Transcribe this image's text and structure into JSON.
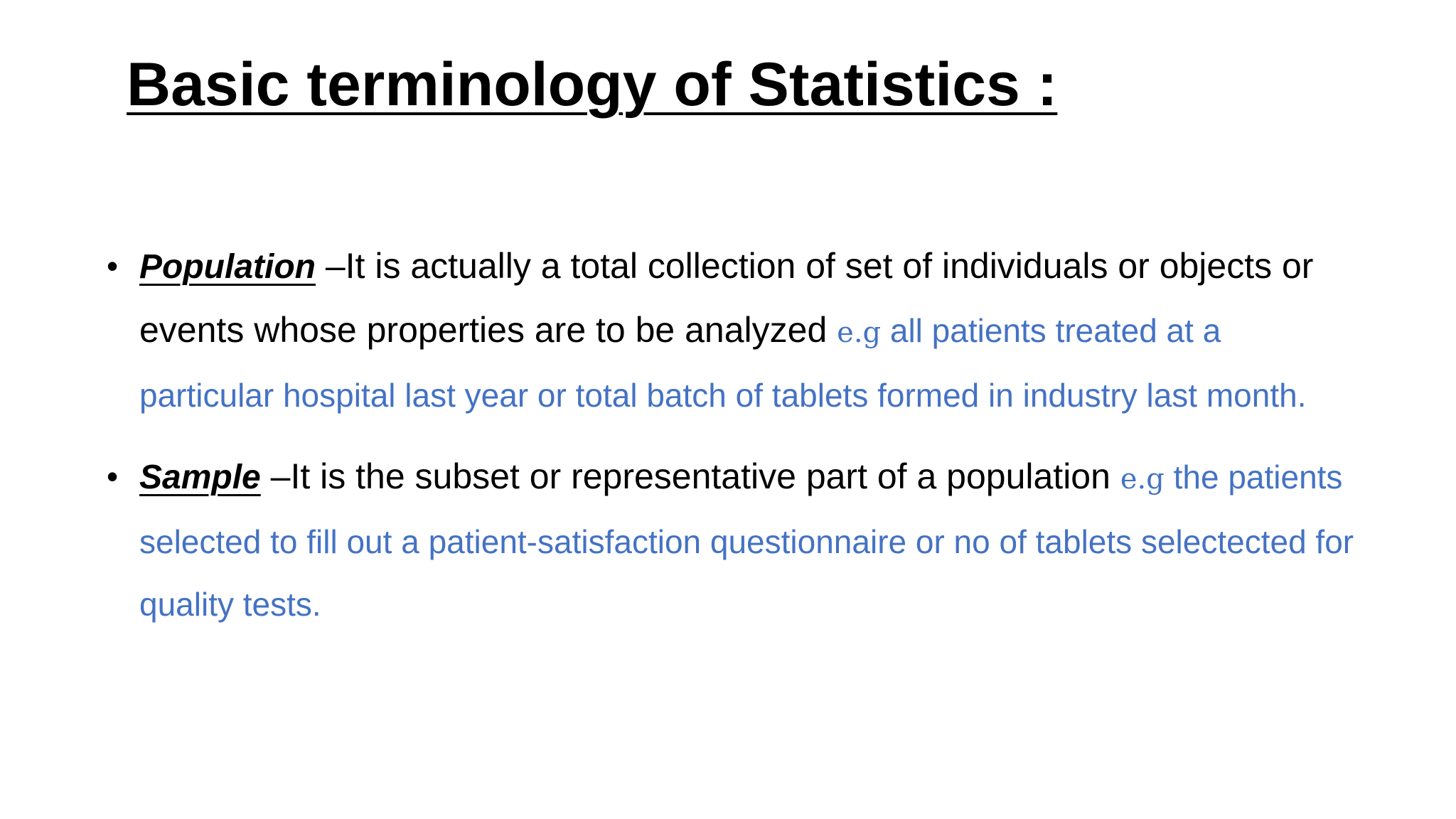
{
  "slide": {
    "title": "Basic terminology of Statistics :",
    "bullets": [
      {
        "term": "Population",
        "definition": " –It is actually a total collection of set of individuals or objects or events whose properties are to be analyzed ",
        "eg_label": " e.g ",
        "example": " all patients treated at a particular hospital last year or total batch of tablets formed in industry last month."
      },
      {
        "term": "Sample",
        "definition": " –It is the subset or representative part of a population ",
        "eg_label": "e.g",
        "example": " the patients selected to fill out a patient-satisfaction questionnaire or no of tablets selectected for quality tests."
      }
    ],
    "colors": {
      "text": "#000000",
      "example_blue": "#4472c4",
      "background": "#ffffff"
    }
  }
}
